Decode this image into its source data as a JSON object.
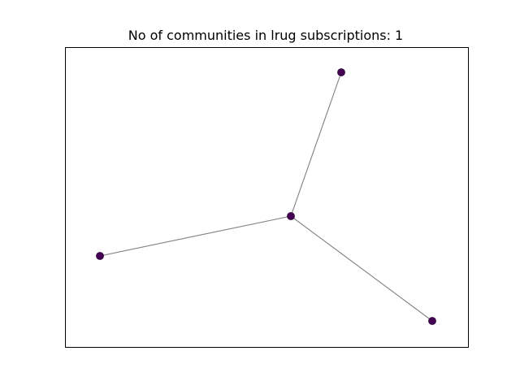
{
  "title": "No of communities in lrug subscriptions: 1",
  "colors": {
    "edge": "#808080",
    "node": "#440154",
    "frame": "#000000",
    "background": "#ffffff"
  },
  "graph": {
    "nodes": [
      {
        "id": "n0",
        "community": 0
      },
      {
        "id": "n1",
        "community": 0
      },
      {
        "id": "n2",
        "community": 0
      },
      {
        "id": "n3",
        "community": 0
      }
    ],
    "edges": [
      {
        "source": "n0",
        "target": "n1"
      },
      {
        "source": "n0",
        "target": "n2"
      },
      {
        "source": "n0",
        "target": "n3"
      }
    ]
  }
}
